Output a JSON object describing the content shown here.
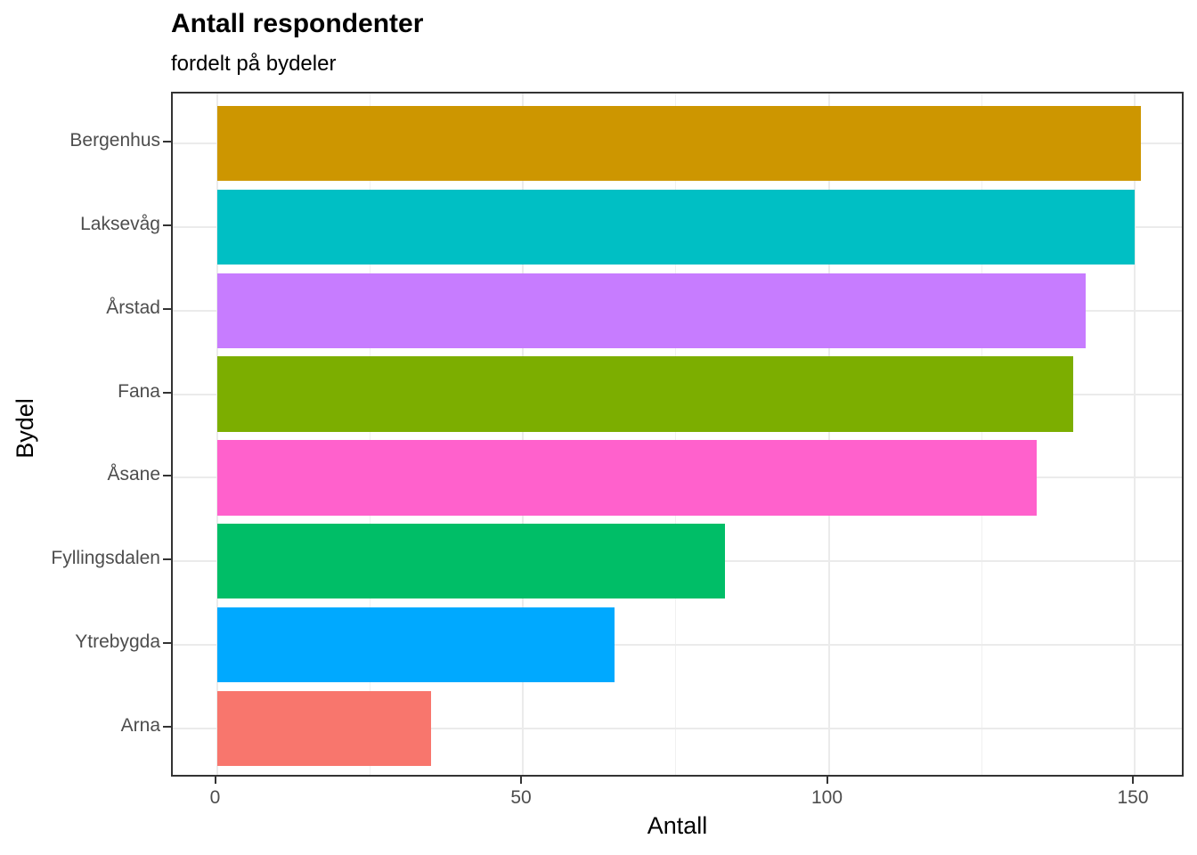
{
  "chart_data": {
    "type": "bar",
    "orientation": "horizontal",
    "title": "Antall respondenter",
    "subtitle": "fordelt på bydeler",
    "xlabel": "Antall",
    "ylabel": "Bydel",
    "categories": [
      "Bergenhus",
      "Laksevåg",
      "Årstad",
      "Fana",
      "Åsane",
      "Fyllingsdalen",
      "Ytrebygda",
      "Arna"
    ],
    "values": [
      151,
      150,
      142,
      140,
      134,
      83,
      65,
      35
    ],
    "bar_colors": [
      "#CD9600",
      "#00BFC4",
      "#C77CFF",
      "#7CAE00",
      "#FF61CC",
      "#00BE67",
      "#00A9FF",
      "#F8766D"
    ],
    "x_ticks": [
      0,
      50,
      100,
      150
    ],
    "x_minor_gridlines": [
      25,
      75,
      125
    ],
    "xlim": [
      -7.5,
      158.5
    ],
    "bar_width_fraction": 0.9,
    "grid": true,
    "legend": false,
    "theme": {
      "background": "#FFFFFF",
      "panel_border": "#333333",
      "grid_major": "#EBEBEB",
      "grid_minor": "#F0F0F0",
      "tick_color": "#333333",
      "tick_label_color": "#4D4D4D",
      "title_color": "#000000"
    }
  }
}
